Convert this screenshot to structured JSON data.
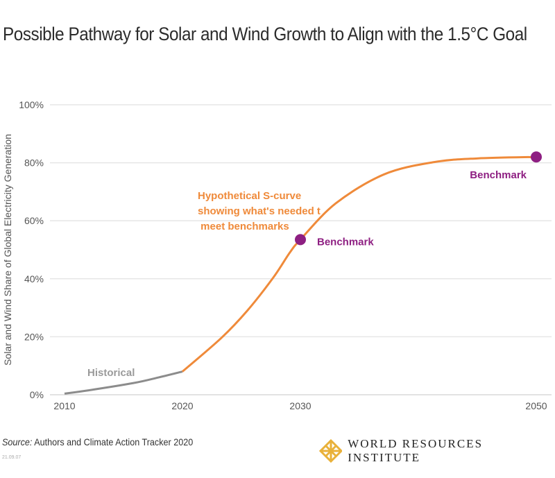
{
  "chart_data": {
    "type": "line",
    "title": "Possible Pathway for Solar and Wind Growth to Align with the 1.5°C Goal",
    "ylabel": "Solar and Wind Share of Global Electricity Generation",
    "xlabel": "",
    "ylim": [
      0,
      100
    ],
    "xlim": [
      2010,
      2050
    ],
    "yticks": [
      "0%",
      "20%",
      "40%",
      "60%",
      "80%",
      "100%"
    ],
    "ytick_values": [
      0,
      20,
      40,
      60,
      80,
      100
    ],
    "xticks": [
      "2010",
      "2020",
      "2030",
      "2050"
    ],
    "xtick_values": [
      2010,
      2020,
      2030,
      2050
    ],
    "grid": true,
    "series": [
      {
        "name": "Historical",
        "color": "#8c8c8c",
        "x": [
          2010,
          2012,
          2015.8,
          2018,
          2020
        ],
        "y": [
          0.4,
          1.5,
          4,
          6,
          8
        ]
      },
      {
        "name": "Hypothetical S-curve showing what's needed to meet benchmarks",
        "color": "#ef8a3a",
        "x": [
          2020,
          2023.3,
          2025.5,
          2027.7,
          2029.1,
          2030,
          2033,
          2037.1,
          2041.3,
          2045,
          2050
        ],
        "y": [
          8,
          19.6,
          29,
          40.4,
          49,
          53.5,
          66,
          76,
          80.2,
          81.5,
          82
        ]
      }
    ],
    "points": [
      {
        "label": "Benchmark",
        "x": 2030,
        "y": 53.5,
        "color": "#8e1f82"
      },
      {
        "label": "Benchmark",
        "x": 2050,
        "y": 82,
        "color": "#8e1f82"
      }
    ]
  },
  "footer": {
    "source_label": "Source:",
    "source_text": " Authors and Climate Action Tracker 2020",
    "code": "21.09.07",
    "logo_text": "WORLD RESOURCES INSTITUTE"
  }
}
